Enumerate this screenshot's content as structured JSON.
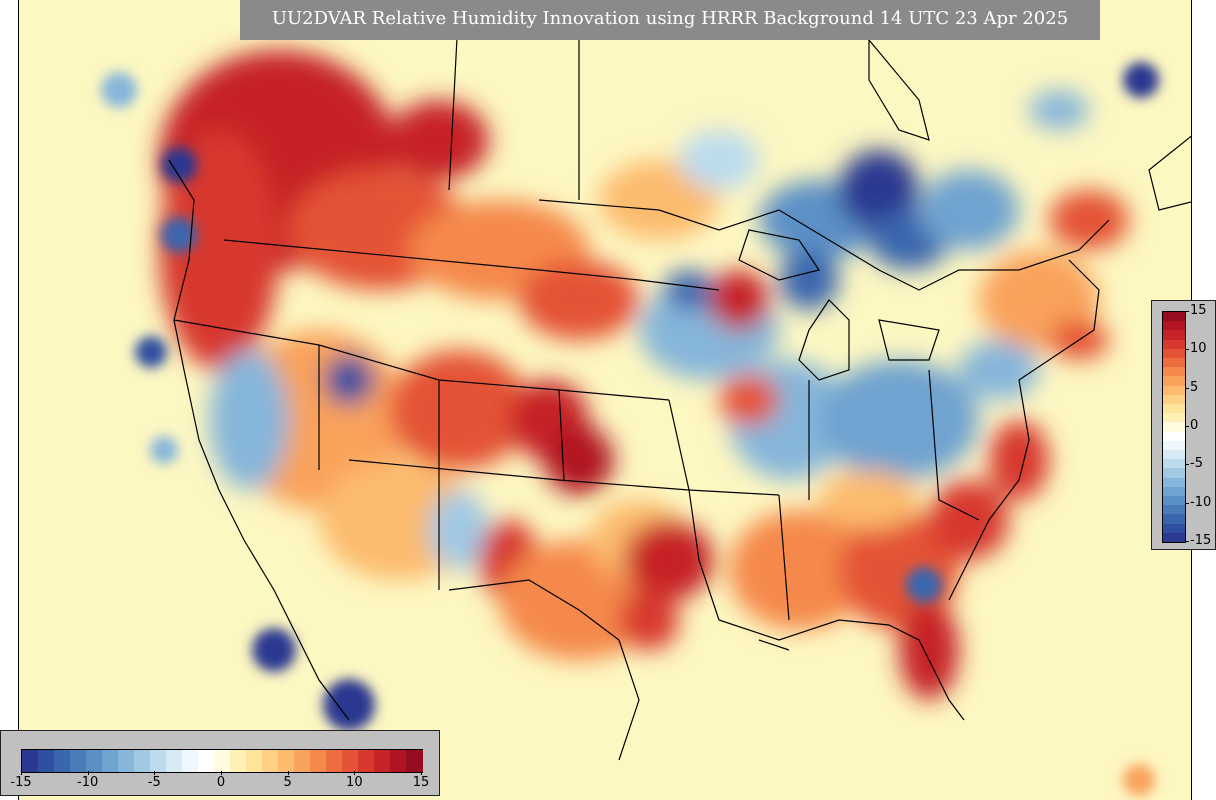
{
  "title": "UU2DVAR Relative Humidity Innovation using HRRR Background 14 UTC 23 Apr 2025",
  "colorbar": {
    "min": -15,
    "max": 15,
    "colors": [
      "#2b3990",
      "#2f4fa0",
      "#3a66ae",
      "#4a7cba",
      "#5b90c6",
      "#6fa3d0",
      "#86b6da",
      "#a1c9e4",
      "#bcdbee",
      "#d7ebf5",
      "#eef7fb",
      "#ffffff",
      "#fffbe0",
      "#fff0b5",
      "#fee39a",
      "#fdd084",
      "#fcbb6e",
      "#f9a25b",
      "#f5894b",
      "#ee6d3e",
      "#e45336",
      "#d7392e",
      "#c62428",
      "#b11423",
      "#960c20"
    ],
    "horizontal_ticks": [
      "-15",
      "-10",
      "-5",
      "0",
      "5",
      "10",
      "15"
    ],
    "vertical_ticks": [
      "15",
      "10",
      "5",
      "0",
      "-5",
      "-10",
      "-15"
    ]
  }
}
